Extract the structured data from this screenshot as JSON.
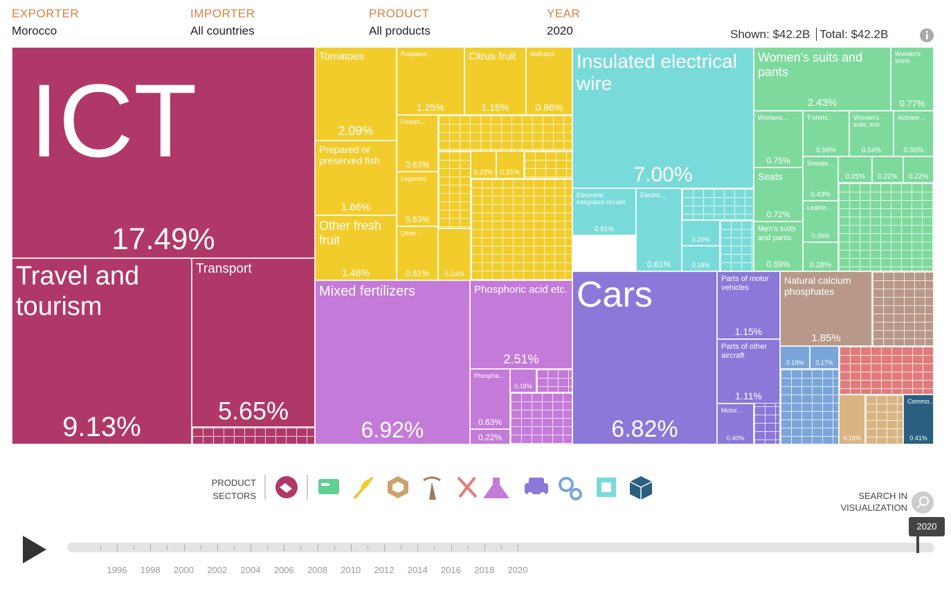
{
  "header": {
    "filters": [
      {
        "label": "EXPORTER",
        "value": "Morocco"
      },
      {
        "label": "IMPORTER",
        "value": "All countries"
      },
      {
        "label": "PRODUCT",
        "value": "All products"
      },
      {
        "label": "YEAR",
        "value": "2020"
      }
    ],
    "shown_label": "Shown:",
    "shown_value": "$42.2B",
    "total_label": "Total:",
    "total_value": "$42.2B"
  },
  "treemap": {
    "tiles": [
      {
        "label": "ICT",
        "share": "17.49%"
      },
      {
        "label": "Travel and tourism",
        "share": "9.13%"
      },
      {
        "label": "Transport",
        "share": "5.65%"
      },
      {
        "label": "Tomatoes",
        "share": "2.09%"
      },
      {
        "label": "Prepared or preserved fish",
        "share": "1.66%"
      },
      {
        "label": "Other fresh fruit",
        "share": "1.46%"
      },
      {
        "label": "Prepared…",
        "share": "1.25%"
      },
      {
        "label": "Citrus fruit",
        "share": "1.15%"
      },
      {
        "label": "Molluscs",
        "share": "0.86%"
      },
      {
        "label": "Frozen…",
        "share": "0.63%"
      },
      {
        "label": "Legumes",
        "share": "0.63%"
      },
      {
        "label": "Other…",
        "share": "0.61%"
      },
      {
        "share": "0.24%"
      },
      {
        "share": "0.22%"
      },
      {
        "share": "0.21%"
      },
      {
        "label": "Mixed fertilizers",
        "share": "6.92%"
      },
      {
        "label": "Phosphoric acid etc.",
        "share": "2.51%"
      },
      {
        "label": "Phospha…",
        "share": "0.63%"
      },
      {
        "share": "0.22%"
      },
      {
        "share": "0.18%"
      },
      {
        "label": "Insulated electrical wire",
        "share": "7.00%"
      },
      {
        "label": "Electronic integrated circuits",
        "share": "0.81%"
      },
      {
        "label": "Electric…",
        "share": "0.61%"
      },
      {
        "share": "0.20%"
      },
      {
        "share": "0.18%"
      },
      {
        "label": "Cars",
        "share": "6.82%"
      },
      {
        "label": "Parts of motor vehicles",
        "share": "1.15%"
      },
      {
        "label": "Parts of other aircraft",
        "share": "1.11%"
      },
      {
        "label": "Motor…",
        "share": "0.40%"
      },
      {
        "label": "Women's suits and pants",
        "share": "2.43%"
      },
      {
        "label": "Women's shirts",
        "share": "0.77%"
      },
      {
        "label": "Womens…",
        "share": "0.75%"
      },
      {
        "label": "T-shirts…",
        "share": "0.56%"
      },
      {
        "label": "Women's suits, knit",
        "share": "0.54%"
      },
      {
        "label": "Activew…",
        "share": "0.50%"
      },
      {
        "label": "Seats",
        "share": "0.72%"
      },
      {
        "label": "Men's suits and pants",
        "share": "0.69%"
      },
      {
        "label": "Sweate…",
        "share": "0.43%"
      },
      {
        "label": "Leathe…",
        "share": "0.39%"
      },
      {
        "share": "0.28%"
      },
      {
        "share": "0.25%"
      },
      {
        "share": "0.22%"
      },
      {
        "share": "0.22%"
      },
      {
        "label": "Natural calcium phosphates",
        "share": "1.85%"
      },
      {
        "share": "0.19%"
      },
      {
        "share": "0.17%"
      },
      {
        "share": "0.16%"
      },
      {
        "label": "Commo…",
        "share": "0.41%"
      }
    ]
  },
  "sectors": {
    "label": "PRODUCT SECTORS"
  },
  "search": {
    "label": "SEARCH IN VISUALIZATION"
  },
  "timeline": {
    "current": "2020",
    "years": [
      1996,
      1998,
      2000,
      2002,
      2004,
      2006,
      2008,
      2010,
      2012,
      2014,
      2016,
      2018,
      2020
    ]
  }
}
